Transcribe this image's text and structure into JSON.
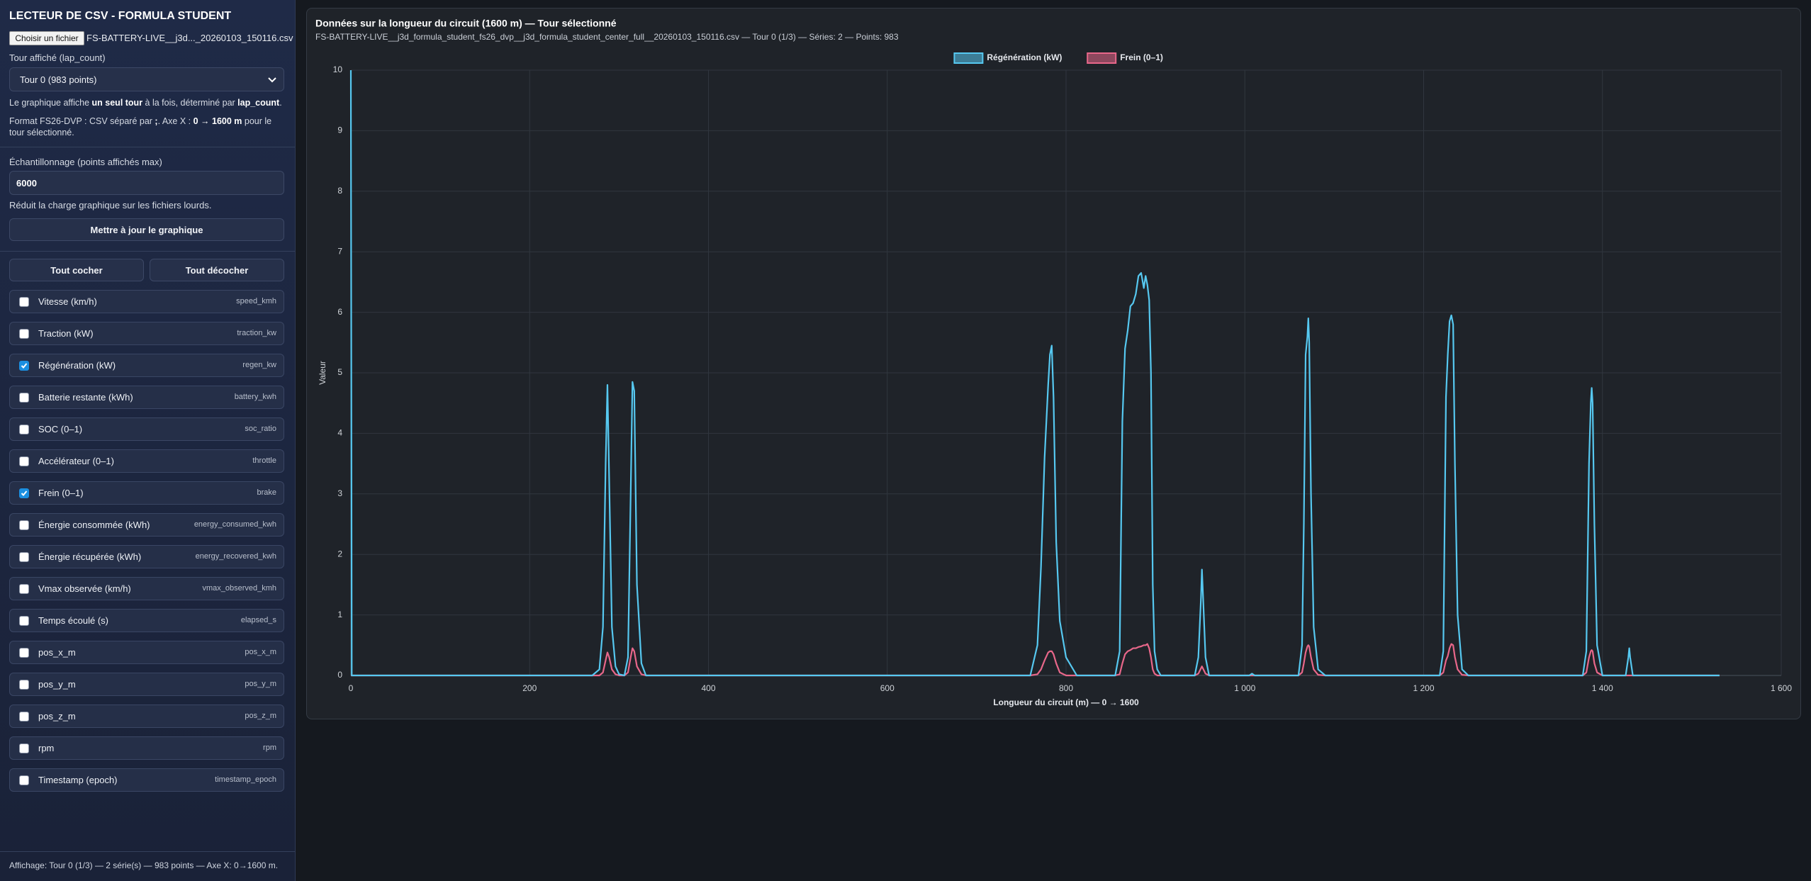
{
  "sidebar": {
    "title": "LECTEUR DE CSV - FORMULA STUDENT",
    "file_button": "Choisir un fichier",
    "file_name": "FS-BATTERY-LIVE__j3d..._20260103_150116.csv",
    "lap_label": "Tour affiché (lap_count)",
    "lap_select": "Tour 0 (983 points)",
    "info_1": [
      "Le graphique affiche ",
      "un seul tour",
      " à la fois, déterminé par ",
      "lap_count",
      "."
    ],
    "info_2": [
      "Format FS26-DVP : CSV séparé par ",
      ";",
      ". Axe X : ",
      "0 → 1600 m",
      " pour le tour sélectionné."
    ],
    "sample_label": "Échantillonnage (points affichés max)",
    "sample_value": "6000",
    "sample_hint": "Réduit la charge graphique sur les fichiers lourds.",
    "update_button": "Mettre à jour le graphique",
    "check_all": "Tout cocher",
    "uncheck_all": "Tout décocher",
    "fields": [
      {
        "label": "Vitesse (km/h)",
        "key": "speed_kmh",
        "checked": false
      },
      {
        "label": "Traction (kW)",
        "key": "traction_kw",
        "checked": false
      },
      {
        "label": "Régénération (kW)",
        "key": "regen_kw",
        "checked": true
      },
      {
        "label": "Batterie restante (kWh)",
        "key": "battery_kwh",
        "checked": false
      },
      {
        "label": "SOC (0–1)",
        "key": "soc_ratio",
        "checked": false
      },
      {
        "label": "Accélérateur (0–1)",
        "key": "throttle",
        "checked": false
      },
      {
        "label": "Frein (0–1)",
        "key": "brake",
        "checked": true
      },
      {
        "label": "Énergie consommée (kWh)",
        "key": "energy_consumed_kwh",
        "checked": false
      },
      {
        "label": "Énergie récupérée (kWh)",
        "key": "energy_recovered_kwh",
        "checked": false
      },
      {
        "label": "Vmax observée (km/h)",
        "key": "vmax_observed_kmh",
        "checked": false
      },
      {
        "label": "Temps écoulé (s)",
        "key": "elapsed_s",
        "checked": false
      },
      {
        "label": "pos_x_m",
        "key": "pos_x_m",
        "checked": false
      },
      {
        "label": "pos_y_m",
        "key": "pos_y_m",
        "checked": false
      },
      {
        "label": "pos_z_m",
        "key": "pos_z_m",
        "checked": false
      },
      {
        "label": "rpm",
        "key": "rpm",
        "checked": false
      },
      {
        "label": "Timestamp (epoch)",
        "key": "timestamp_epoch",
        "checked": false
      }
    ],
    "status": "Affichage: Tour 0 (1/3) — 2 série(s) — 983 points — Axe X: 0→1600 m."
  },
  "chart_data": {
    "type": "line",
    "title": "Données sur la longueur du circuit (1600 m) — Tour sélectionné",
    "subtitle": "FS-BATTERY-LIVE__j3d_formula_student_fs26_dvp__j3d_formula_student_center_full__20260103_150116.csv — Tour 0 (1/3) — Séries: 2 — Points: 983",
    "x_label": "Longueur du circuit (m) — 0 → 1600",
    "y_label": "Valeur",
    "xlim": [
      0,
      1600
    ],
    "ylim": [
      0,
      10
    ],
    "xticks": [
      0,
      200,
      400,
      600,
      800,
      {
        "value": 1000,
        "label": "1 000"
      },
      {
        "value": 1200,
        "label": "1 200"
      },
      {
        "value": 1400,
        "label": "1 400"
      },
      {
        "value": 1600,
        "label": "1 600"
      }
    ],
    "yticks": [
      0,
      1,
      2,
      3,
      4,
      5,
      6,
      7,
      8,
      9,
      10
    ],
    "grid": true,
    "legend": "top",
    "x": [
      0,
      1,
      270,
      278,
      282,
      285,
      287,
      289,
      292,
      296,
      300,
      306,
      310,
      313,
      315,
      317,
      320,
      325,
      330,
      760,
      768,
      772,
      776,
      780,
      782,
      784,
      786,
      789,
      793,
      800,
      812,
      855,
      860,
      863,
      866,
      869,
      872,
      875,
      878,
      881,
      884,
      887,
      889,
      891,
      893,
      895,
      897,
      899,
      902,
      906,
      944,
      948,
      951,
      952,
      953,
      956,
      960,
      1005,
      1008,
      1011,
      1060,
      1064,
      1066,
      1068,
      1070,
      1071,
      1072,
      1074,
      1077,
      1082,
      1090,
      1218,
      1222,
      1225,
      1227,
      1229,
      1231,
      1233,
      1235,
      1238,
      1243,
      1250,
      1378,
      1382,
      1385,
      1387,
      1388,
      1389,
      1391,
      1394,
      1400,
      1426,
      1429,
      1430,
      1431,
      1434,
      1531
    ],
    "series": [
      {
        "name": "Régénération (kW)",
        "color": "#56c8f0",
        "values": [
          10,
          0,
          0,
          0.1,
          0.8,
          3.5,
          4.8,
          3.2,
          0.8,
          0.15,
          0.02,
          0,
          0.3,
          3.0,
          4.85,
          4.7,
          1.5,
          0.2,
          0,
          0,
          0.5,
          1.8,
          3.6,
          4.8,
          5.3,
          5.45,
          4.6,
          2.2,
          0.9,
          0.3,
          0,
          0,
          0.4,
          4.2,
          5.4,
          5.7,
          6.1,
          6.15,
          6.3,
          6.6,
          6.65,
          6.4,
          6.6,
          6.45,
          6.2,
          5.0,
          1.5,
          0.4,
          0.1,
          0,
          0,
          0.3,
          1.3,
          1.75,
          1.4,
          0.3,
          0,
          0,
          0.03,
          0,
          0,
          0.5,
          2.5,
          5.3,
          5.6,
          5.9,
          5.5,
          3.0,
          0.8,
          0.1,
          0,
          0,
          0.4,
          4.6,
          5.3,
          5.85,
          5.95,
          5.8,
          3.5,
          1.0,
          0.1,
          0,
          0,
          0.4,
          3.5,
          4.5,
          4.75,
          4.5,
          2.5,
          0.5,
          0,
          0,
          0.3,
          0.45,
          0.3,
          0,
          0
        ]
      },
      {
        "name": "Frein (0–1)",
        "color": "#e8678a",
        "values": [
          0,
          0,
          0,
          0,
          0.05,
          0.25,
          0.38,
          0.3,
          0.1,
          0.02,
          0,
          0,
          0.05,
          0.3,
          0.45,
          0.4,
          0.15,
          0.02,
          0,
          0,
          0.02,
          0.1,
          0.25,
          0.38,
          0.4,
          0.4,
          0.35,
          0.2,
          0.05,
          0,
          0,
          0,
          0.02,
          0.2,
          0.35,
          0.4,
          0.42,
          0.45,
          0.45,
          0.47,
          0.48,
          0.5,
          0.5,
          0.52,
          0.45,
          0.3,
          0.1,
          0.03,
          0,
          0,
          0,
          0.03,
          0.12,
          0.15,
          0.12,
          0.03,
          0,
          0,
          0,
          0,
          0,
          0.05,
          0.2,
          0.38,
          0.48,
          0.5,
          0.48,
          0.3,
          0.1,
          0.01,
          0,
          0,
          0.05,
          0.25,
          0.32,
          0.45,
          0.52,
          0.5,
          0.3,
          0.1,
          0.01,
          0,
          0,
          0.05,
          0.3,
          0.4,
          0.42,
          0.4,
          0.2,
          0.05,
          0,
          0,
          0,
          0,
          0,
          0,
          0
        ]
      }
    ]
  }
}
